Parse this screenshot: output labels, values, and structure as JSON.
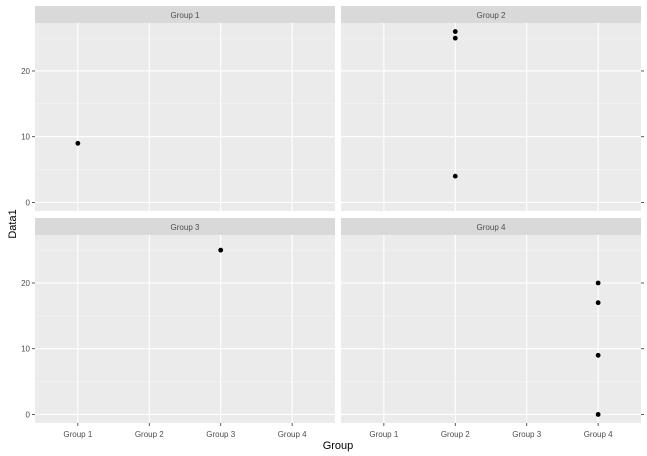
{
  "chart_data": {
    "type": "scatter",
    "facet_wrap": true,
    "xlabel": "Group",
    "ylabel": "Data1",
    "x_categories": [
      "Group 1",
      "Group 2",
      "Group 3",
      "Group 4"
    ],
    "ylim": [
      -1.3,
      27.3
    ],
    "y_ticks": [
      0,
      10,
      20
    ],
    "grid": true,
    "legend": "none",
    "panels": [
      {
        "strip": "Group 1",
        "points": [
          {
            "x": "Group 1",
            "y": 9
          }
        ]
      },
      {
        "strip": "Group 2",
        "points": [
          {
            "x": "Group 2",
            "y": 26
          },
          {
            "x": "Group 2",
            "y": 25
          },
          {
            "x": "Group 2",
            "y": 4
          }
        ]
      },
      {
        "strip": "Group 3",
        "points": [
          {
            "x": "Group 3",
            "y": 25
          }
        ]
      },
      {
        "strip": "Group 4",
        "points": [
          {
            "x": "Group 4",
            "y": 20
          },
          {
            "x": "Group 4",
            "y": 17
          },
          {
            "x": "Group 4",
            "y": 9
          },
          {
            "x": "Group 4",
            "y": 0
          }
        ]
      }
    ]
  },
  "colors": {
    "panel_background": "#ebebeb",
    "strip_background": "#d9d9d9",
    "grid_major": "#ffffff",
    "grid_minor": "#f5f5f5",
    "point": "#000000",
    "tick_text": "#4d4d4d",
    "tick_line": "#333333"
  }
}
